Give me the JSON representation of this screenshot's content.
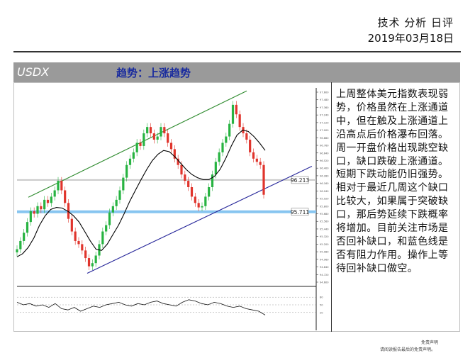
{
  "header": {
    "title": "技术 分析 日评",
    "date": "2019年03月18日"
  },
  "band": {
    "symbol": "USDX",
    "trend": "趋势：上涨趋势"
  },
  "commentary": "上周整体美元指数表现弱势，价格虽然在上涨通道中，但在触及上涨通道上沿高点后价格瀑布回落。周一开盘价格出现跳空缺口，缺口跌破上涨通道。短期下跌动能仍旧强势。相对于最近几周这个缺口比较大，如果属于突破缺口，那后势延续下跌概率将增加。目前关注市场是否回补缺口，和蓝色线是否有阻力作用。操作上等待回补缺口做空。",
  "footer": {
    "line1": "免责声明",
    "line2": "请阅读报告最后的免责声明。"
  },
  "colors": {
    "up": "#27b341",
    "down": "#e0342c",
    "upper_channel": "#2e8b2e",
    "lower_channel": "#27279a",
    "support_line": "#87c5f0",
    "resistance_line": "#c8c8c8",
    "ma": "#000000"
  },
  "chart_data": {
    "type": "line",
    "y_tick_labels": [
      "97.600",
      "97.480",
      "97.360",
      "97.240",
      "97.120",
      "97.000",
      "96.880",
      "96.760",
      "96.640",
      "96.520",
      "96.400",
      "96.280",
      "96.160",
      "96.040",
      "95.920",
      "95.800",
      "95.680",
      "95.560",
      "95.440",
      "95.320",
      "95.200",
      "95.080",
      "94.960",
      "94.840",
      "94.720",
      "94.600"
    ],
    "ylim": [
      94.6,
      97.6
    ],
    "level_labels": [
      "96.213",
      "95.711"
    ],
    "levels": [
      96.213,
      95.711
    ],
    "close": [
      95.12,
      95.25,
      95.38,
      95.55,
      95.72,
      95.68,
      95.8,
      95.75,
      95.9,
      95.85,
      95.95,
      96.05,
      96.2,
      96.05,
      95.85,
      95.6,
      95.4,
      95.25,
      95.2,
      95.1,
      94.98,
      94.85,
      94.9,
      95.02,
      95.2,
      95.4,
      95.5,
      95.7,
      95.8,
      95.9,
      96.05,
      96.25,
      96.45,
      96.55,
      96.65,
      96.8,
      96.75,
      96.95,
      97.05,
      96.95,
      96.85,
      96.9,
      97.05,
      96.95,
      96.8,
      96.7,
      96.55,
      96.45,
      96.3,
      96.2,
      96.1,
      95.95,
      95.85,
      95.78,
      95.8,
      95.95,
      96.1,
      96.3,
      96.5,
      96.65,
      96.8,
      96.9,
      97.1,
      97.4,
      97.25,
      97.05,
      96.95,
      96.85,
      96.65,
      96.55,
      96.5,
      96.45,
      95.98
    ],
    "ma_series": [
      95.0,
      95.05,
      95.15,
      95.3,
      95.5,
      95.65,
      95.75,
      95.78,
      95.77,
      95.72,
      95.65,
      95.55,
      95.4,
      95.25,
      95.12,
      95.1,
      95.2,
      95.35,
      95.5,
      95.68,
      95.88,
      96.05,
      96.22,
      96.38,
      96.52,
      96.62,
      96.68,
      96.66,
      96.58,
      96.48,
      96.38,
      96.3,
      96.25,
      96.22,
      96.22,
      96.27,
      96.38,
      96.55,
      96.75,
      96.92,
      97.0,
      96.98,
      96.9,
      96.8,
      96.68
    ],
    "oscillator": [
      0.6,
      0.5,
      0.55,
      0.45,
      0.5,
      0.4,
      0.55,
      0.35,
      0.3,
      0.4,
      0.25,
      0.35,
      0.45,
      0.4,
      0.5,
      0.55,
      0.6,
      0.5,
      0.45,
      0.55,
      0.5,
      0.6,
      0.65,
      0.55,
      0.5,
      0.45,
      0.6,
      0.7,
      0.65,
      0.55,
      0.5,
      0.6,
      0.55,
      0.45,
      0.4,
      0.45,
      0.35,
      0.3,
      0.25,
      0.1
    ],
    "oscillator_labels": [
      "50",
      "80",
      "20"
    ]
  }
}
